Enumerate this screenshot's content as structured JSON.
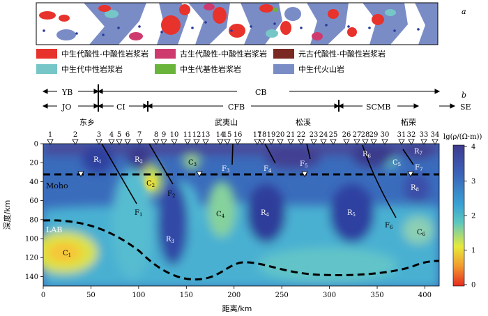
{
  "panel_labels": {
    "a": "a",
    "b": "b"
  },
  "legend": [
    {
      "label": "中生代酸性-中酸性岩浆岩",
      "color": "#e8322c"
    },
    {
      "label": "古生代酸性-中酸性岩浆岩",
      "color": "#cf3a6e"
    },
    {
      "label": "元古代酸性-中酸性岩浆岩",
      "color": "#7a2a22"
    },
    {
      "label": "中生代中性岩浆岩",
      "color": "#76c6c8"
    },
    {
      "label": "中生代基性岩浆岩",
      "color": "#6ab43c"
    },
    {
      "label": "中生代火山岩",
      "color": "#7a8cc6"
    }
  ],
  "tectonic_units": {
    "row1": {
      "left": "YB",
      "right": "CB"
    },
    "row2": [
      "JO",
      "CI",
      "CFB",
      "SCMB",
      "SE"
    ]
  },
  "places": [
    "东乡",
    "武夷山",
    "松溪",
    "柘荣"
  ],
  "stations": [
    "1",
    "2",
    "3",
    "4",
    "5",
    "6",
    "7",
    "8",
    "9",
    "10",
    "11",
    "12",
    "13",
    "14",
    "15",
    "16",
    "17",
    "18",
    "19",
    "20",
    "21",
    "22",
    "23",
    "24",
    "25",
    "26",
    "27",
    "28",
    "29",
    "30",
    "31",
    "32",
    "33",
    "34"
  ],
  "section": {
    "x_label": "距离/km",
    "y_label": "深度/km",
    "x_ticks": [
      "0",
      "50",
      "100",
      "150",
      "200",
      "250",
      "300",
      "350",
      "400"
    ],
    "y_ticks": [
      "0",
      "20",
      "40",
      "60",
      "80",
      "100",
      "120",
      "140"
    ],
    "moho_label": "Moho",
    "lab_label": "LAB"
  },
  "anomalies": {
    "conductors": [
      "C1",
      "C2",
      "C3",
      "C4",
      "C5",
      "C6"
    ],
    "resistors": [
      "R1",
      "R2",
      "R3",
      "R4",
      "R5",
      "R6",
      "R7",
      "R8"
    ],
    "faults": [
      "F1",
      "F2",
      "F3",
      "F4",
      "F5",
      "F6",
      "F7"
    ]
  },
  "colorbar": {
    "title": "lg(ρ/(Ω·m))",
    "ticks": [
      "4",
      "3",
      "2",
      "1",
      "0"
    ],
    "colors": [
      "#3f3a8e",
      "#3a62b8",
      "#39a0d4",
      "#5cc7bf",
      "#e6ea3a",
      "#f29a2e",
      "#e62a1f"
    ]
  }
}
